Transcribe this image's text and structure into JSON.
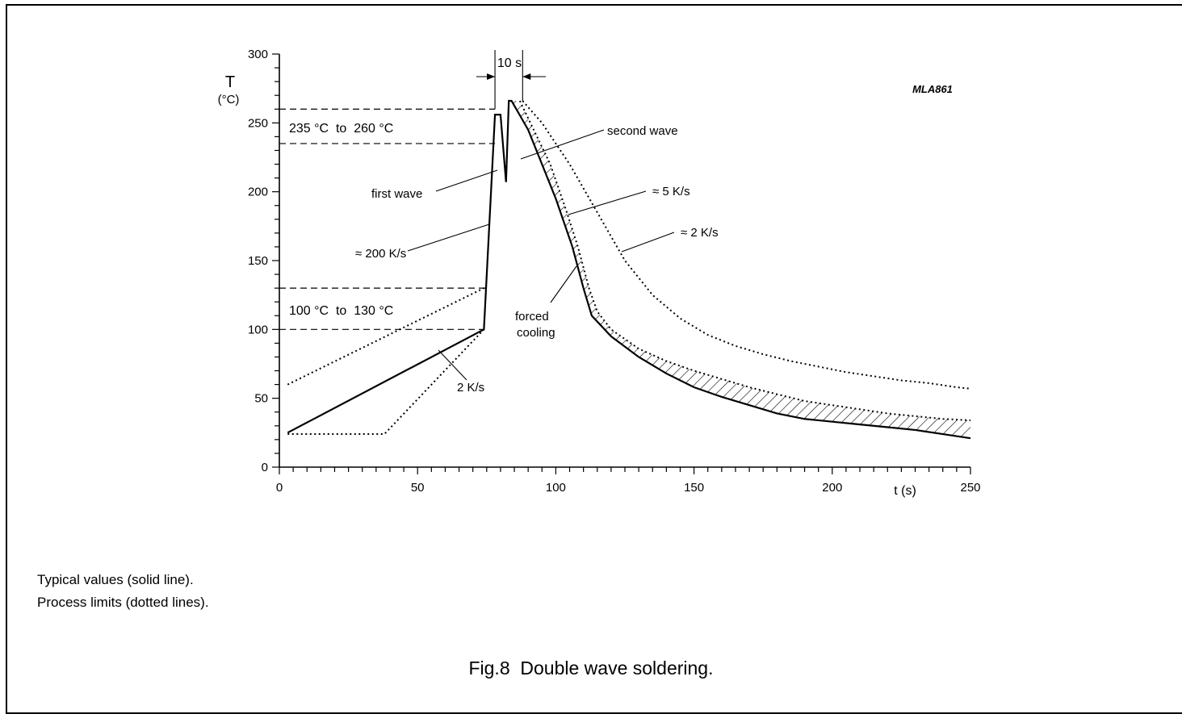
{
  "chart_data": {
    "type": "line",
    "title": "",
    "xlabel": "t (s)",
    "ylabel": "T",
    "ylabel_unit": "(°C)",
    "xlim": [
      0,
      250
    ],
    "ylim": [
      0,
      300
    ],
    "xticks": [
      0,
      50,
      100,
      150,
      200,
      250
    ],
    "yticks": [
      0,
      50,
      100,
      150,
      200,
      250,
      300
    ],
    "grid": false,
    "code": "MLA861",
    "series": [
      {
        "style": "solid",
        "points": [
          [
            3,
            25
          ],
          [
            74,
            100
          ],
          [
            78,
            256
          ],
          [
            80,
            256
          ],
          [
            82,
            207
          ],
          [
            83,
            266
          ],
          [
            84,
            266
          ],
          [
            90,
            245
          ],
          [
            100,
            195
          ],
          [
            106,
            160
          ],
          [
            110,
            130
          ],
          [
            113,
            110
          ],
          [
            120,
            95
          ],
          [
            130,
            80
          ],
          [
            140,
            68
          ],
          [
            150,
            58
          ],
          [
            160,
            51
          ],
          [
            170,
            45
          ],
          [
            180,
            39
          ],
          [
            190,
            35
          ],
          [
            200,
            33
          ],
          [
            210,
            31
          ],
          [
            220,
            29
          ],
          [
            230,
            27
          ],
          [
            240,
            24
          ],
          [
            250,
            21
          ]
        ]
      },
      {
        "style": "dotted",
        "points": [
          [
            3,
            24
          ],
          [
            38,
            24
          ],
          [
            74,
            100
          ]
        ]
      },
      {
        "style": "dotted",
        "points": [
          [
            3,
            60
          ],
          [
            75,
            131
          ]
        ]
      },
      {
        "style": "dotted",
        "points": [
          [
            87,
            266
          ],
          [
            92,
            245
          ],
          [
            98,
            220
          ],
          [
            104,
            185
          ],
          [
            108,
            160
          ],
          [
            112,
            130
          ],
          [
            115,
            113
          ],
          [
            120,
            100
          ],
          [
            130,
            86
          ],
          [
            140,
            77
          ],
          [
            150,
            70
          ],
          [
            160,
            64
          ],
          [
            170,
            58
          ],
          [
            180,
            53
          ],
          [
            190,
            48
          ],
          [
            200,
            45
          ],
          [
            210,
            42
          ],
          [
            220,
            39
          ],
          [
            230,
            37
          ],
          [
            240,
            35
          ],
          [
            250,
            34
          ]
        ]
      },
      {
        "style": "dotted",
        "points": [
          [
            88,
            266
          ],
          [
            95,
            250
          ],
          [
            105,
            220
          ],
          [
            115,
            185
          ],
          [
            125,
            150
          ],
          [
            135,
            125
          ],
          [
            145,
            108
          ],
          [
            155,
            96
          ],
          [
            165,
            88
          ],
          [
            175,
            82
          ],
          [
            185,
            77
          ],
          [
            195,
            73
          ],
          [
            205,
            69
          ],
          [
            215,
            66
          ],
          [
            225,
            63
          ],
          [
            235,
            61
          ],
          [
            245,
            58
          ],
          [
            250,
            57
          ]
        ]
      }
    ],
    "reference_lines": [
      {
        "y": 260,
        "x_end": 78
      },
      {
        "y": 235,
        "x_end": 78
      },
      {
        "y": 130,
        "x_end": 75
      },
      {
        "y": 100,
        "x_end": 74
      }
    ],
    "band_labels": [
      "235 °C  to  260 °C",
      "100 °C  to  130 °C"
    ],
    "annotations": [
      {
        "text": "10 s"
      },
      {
        "text": "second wave"
      },
      {
        "text": "first wave"
      },
      {
        "text": "≈ 5 K/s"
      },
      {
        "text": "≈ 2 K/s"
      },
      {
        "text": "≈ 200 K/s"
      },
      {
        "text": "forced"
      },
      {
        "text": "cooling"
      },
      {
        "text": "2 K/s"
      }
    ]
  },
  "notes": {
    "line1": "Typical values (solid line).",
    "line2": "Process limits (dotted lines)."
  },
  "caption": {
    "number": "Fig.8",
    "text": "Double wave soldering."
  }
}
